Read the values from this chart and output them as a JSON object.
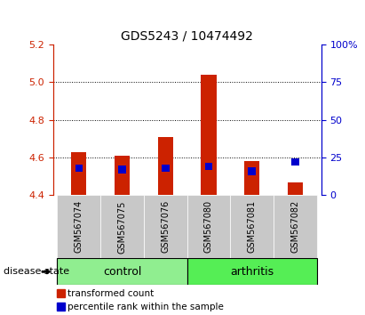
{
  "title": "GDS5243 / 10474492",
  "samples": [
    "GSM567074",
    "GSM567075",
    "GSM567076",
    "GSM567080",
    "GSM567081",
    "GSM567082"
  ],
  "groups": [
    "control",
    "control",
    "control",
    "arthritis",
    "arthritis",
    "arthritis"
  ],
  "group_labels": [
    "control",
    "arthritis"
  ],
  "ctrl_color": "#90EE90",
  "arth_color": "#55EE55",
  "bar_bottom": 4.4,
  "red_values": [
    4.63,
    4.61,
    4.71,
    5.04,
    4.58,
    4.47
  ],
  "blue_values_pct": [
    18,
    17,
    18,
    19,
    16,
    22
  ],
  "ylim_left": [
    4.4,
    5.2
  ],
  "ylim_right": [
    0,
    100
  ],
  "yticks_left": [
    4.4,
    4.6,
    4.8,
    5.0,
    5.2
  ],
  "yticks_right": [
    0,
    25,
    50,
    75,
    100
  ],
  "ytick_labels_right": [
    "0",
    "25",
    "50",
    "75",
    "100%"
  ],
  "left_color": "#CC2200",
  "right_color": "#0000CC",
  "bar_width": 0.35,
  "bg_plot": "#FFFFFF",
  "bg_label": "#C8C8C8",
  "legend_red": "transformed count",
  "legend_blue": "percentile rank within the sample",
  "disease_state_label": "disease state"
}
